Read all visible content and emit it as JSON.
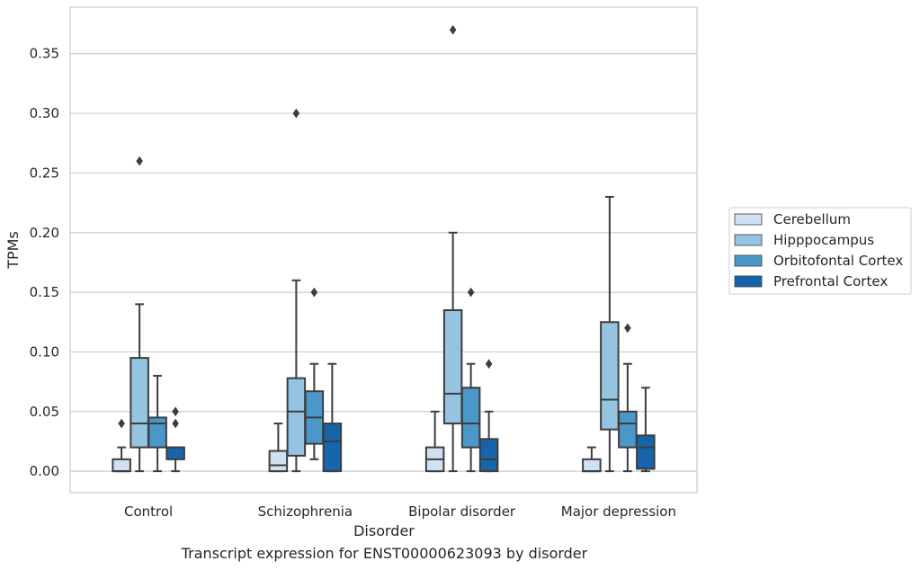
{
  "caption": "Transcript expression for ENST00000623093 by disorder",
  "chart_data": {
    "type": "box",
    "xlabel": "Disorder",
    "ylabel": "TPMs",
    "ylim": [
      -0.018,
      0.389
    ],
    "yticks": [
      0.0,
      0.05,
      0.1,
      0.15,
      0.2,
      0.25,
      0.3,
      0.35
    ],
    "ytick_labels": [
      "0.00",
      "0.05",
      "0.10",
      "0.15",
      "0.20",
      "0.25",
      "0.30",
      "0.35"
    ],
    "grid": "horizontal",
    "legend_position": "right",
    "categories": [
      "Control",
      "Schizophrenia",
      "Bipolar disorder",
      "Major depression"
    ],
    "series": [
      {
        "name": "Cerebellum",
        "color": "#d0e1f2",
        "boxes": [
          {
            "whisker_low": 0.0,
            "q1": 0.0,
            "median": 0.0,
            "q3": 0.01,
            "whisker_high": 0.02,
            "outliers": [
              0.04
            ]
          },
          {
            "whisker_low": 0.0,
            "q1": 0.0,
            "median": 0.005,
            "q3": 0.017,
            "whisker_high": 0.04,
            "outliers": []
          },
          {
            "whisker_low": 0.0,
            "q1": 0.0,
            "median": 0.01,
            "q3": 0.02,
            "whisker_high": 0.05,
            "outliers": []
          },
          {
            "whisker_low": 0.0,
            "q1": 0.0,
            "median": 0.0,
            "q3": 0.01,
            "whisker_high": 0.02,
            "outliers": []
          }
        ]
      },
      {
        "name": "Hipppocampus",
        "color": "#94c4df",
        "boxes": [
          {
            "whisker_low": 0.0,
            "q1": 0.02,
            "median": 0.04,
            "q3": 0.095,
            "whisker_high": 0.14,
            "outliers": [
              0.26
            ]
          },
          {
            "whisker_low": 0.0,
            "q1": 0.013,
            "median": 0.05,
            "q3": 0.078,
            "whisker_high": 0.16,
            "outliers": [
              0.3
            ]
          },
          {
            "whisker_low": 0.0,
            "q1": 0.04,
            "median": 0.065,
            "q3": 0.135,
            "whisker_high": 0.2,
            "outliers": [
              0.37
            ]
          },
          {
            "whisker_low": 0.0,
            "q1": 0.035,
            "median": 0.06,
            "q3": 0.125,
            "whisker_high": 0.23,
            "outliers": []
          }
        ]
      },
      {
        "name": "Orbitofontal Cortex",
        "color": "#4a98c9",
        "boxes": [
          {
            "whisker_low": 0.0,
            "q1": 0.02,
            "median": 0.04,
            "q3": 0.045,
            "whisker_high": 0.08,
            "outliers": []
          },
          {
            "whisker_low": 0.01,
            "q1": 0.023,
            "median": 0.045,
            "q3": 0.067,
            "whisker_high": 0.09,
            "outliers": [
              0.15
            ]
          },
          {
            "whisker_low": 0.0,
            "q1": 0.02,
            "median": 0.04,
            "q3": 0.07,
            "whisker_high": 0.09,
            "outliers": [
              0.15
            ]
          },
          {
            "whisker_low": 0.0,
            "q1": 0.02,
            "median": 0.04,
            "q3": 0.05,
            "whisker_high": 0.09,
            "outliers": [
              0.12
            ]
          }
        ]
      },
      {
        "name": "Prefrontal Cortex",
        "color": "#1764ab",
        "boxes": [
          {
            "whisker_low": 0.0,
            "q1": 0.01,
            "median": 0.02,
            "q3": 0.02,
            "whisker_high": 0.02,
            "outliers": [
              0.04,
              0.05
            ]
          },
          {
            "whisker_low": 0.0,
            "q1": 0.0,
            "median": 0.025,
            "q3": 0.04,
            "whisker_high": 0.09,
            "outliers": []
          },
          {
            "whisker_low": 0.0,
            "q1": 0.0,
            "median": 0.01,
            "q3": 0.027,
            "whisker_high": 0.05,
            "outliers": [
              0.09
            ]
          },
          {
            "whisker_low": 0.0,
            "q1": 0.002,
            "median": 0.02,
            "q3": 0.03,
            "whisker_high": 0.07,
            "outliers": []
          }
        ]
      }
    ]
  }
}
